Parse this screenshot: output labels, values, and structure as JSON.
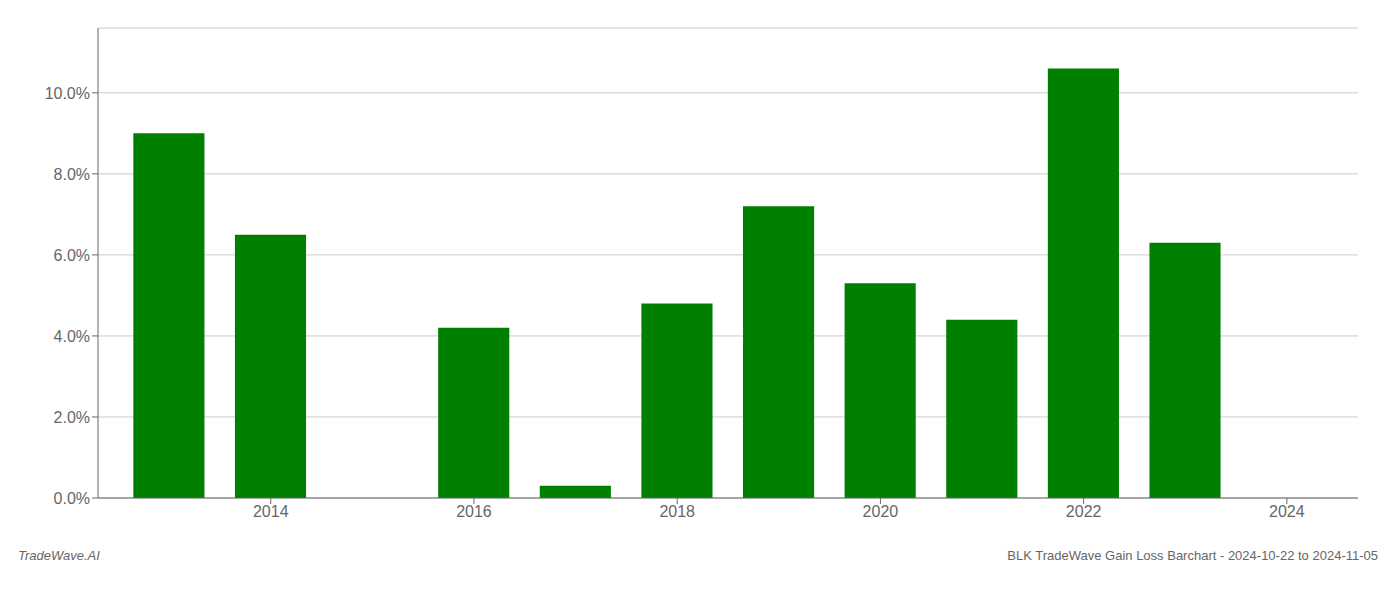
{
  "chart_data": {
    "type": "bar",
    "x": [
      2013,
      2014,
      2016,
      2017,
      2018,
      2019,
      2020,
      2021,
      2022,
      2023
    ],
    "values": [
      0.09,
      0.065,
      0.042,
      0.003,
      0.048,
      0.072,
      0.053,
      0.044,
      0.106,
      0.063
    ],
    "color": "#008000",
    "xlim": [
      2012.3,
      2024.7
    ],
    "xticks": [
      2014,
      2016,
      2018,
      2020,
      2022,
      2024
    ],
    "ylim": [
      0,
      0.116
    ],
    "yticks": [
      {
        "value": 0.0,
        "label": "0.0%"
      },
      {
        "value": 0.02,
        "label": "2.0%"
      },
      {
        "value": 0.04,
        "label": "4.0%"
      },
      {
        "value": 0.06,
        "label": "6.0%"
      },
      {
        "value": 0.08,
        "label": "8.0%"
      },
      {
        "value": 0.1,
        "label": "10.0%"
      }
    ],
    "grid": true,
    "annotations": [
      "TradeWave.AI",
      "BLK TradeWave Gain Loss Barchart - 2024-10-22 to 2024-11-05"
    ]
  }
}
